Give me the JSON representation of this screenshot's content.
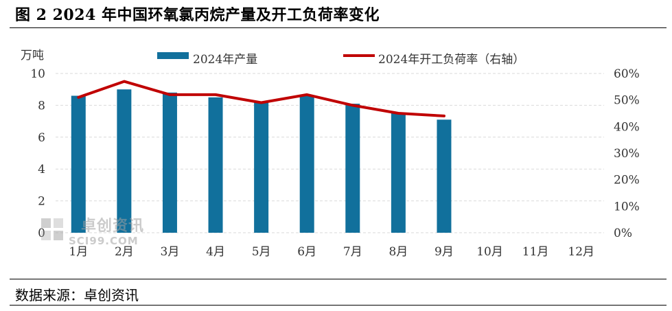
{
  "header": {
    "title": "图 2 2024 年中国环氧氯丙烷产量及开工负荷率变化"
  },
  "footer": {
    "source": "数据来源：卓创资讯"
  },
  "watermark": {
    "text_cn": "卓创资讯",
    "text_en": "SCI99.COM"
  },
  "colors": {
    "bar": "#11709c",
    "line": "#c00000",
    "grid": "#d9d9d9"
  },
  "chart_data": {
    "type": "bar",
    "categories": [
      "1月",
      "2月",
      "3月",
      "4月",
      "5月",
      "6月",
      "7月",
      "8月",
      "9月",
      "10月",
      "11月",
      "12月"
    ],
    "series": [
      {
        "name": "2024年产量",
        "type": "bar",
        "axis": "left",
        "values": [
          8.6,
          9.0,
          8.8,
          8.5,
          8.2,
          8.6,
          8.1,
          7.5,
          7.1,
          null,
          null,
          null
        ]
      },
      {
        "name": "2024年开工负荷率（右轴）",
        "type": "line",
        "axis": "right",
        "values": [
          51,
          57,
          52,
          52,
          49,
          52,
          48,
          45,
          44,
          null,
          null,
          null
        ]
      }
    ],
    "ylabel": "万吨",
    "ylim": [
      0,
      10
    ],
    "yticks": [
      "0",
      "2",
      "4",
      "6",
      "8",
      "10"
    ],
    "y2lim": [
      0,
      60
    ],
    "y2ticks": [
      "0%",
      "10%",
      "20%",
      "30%",
      "40%",
      "50%",
      "60%"
    ],
    "grid": true,
    "legend": "top"
  }
}
